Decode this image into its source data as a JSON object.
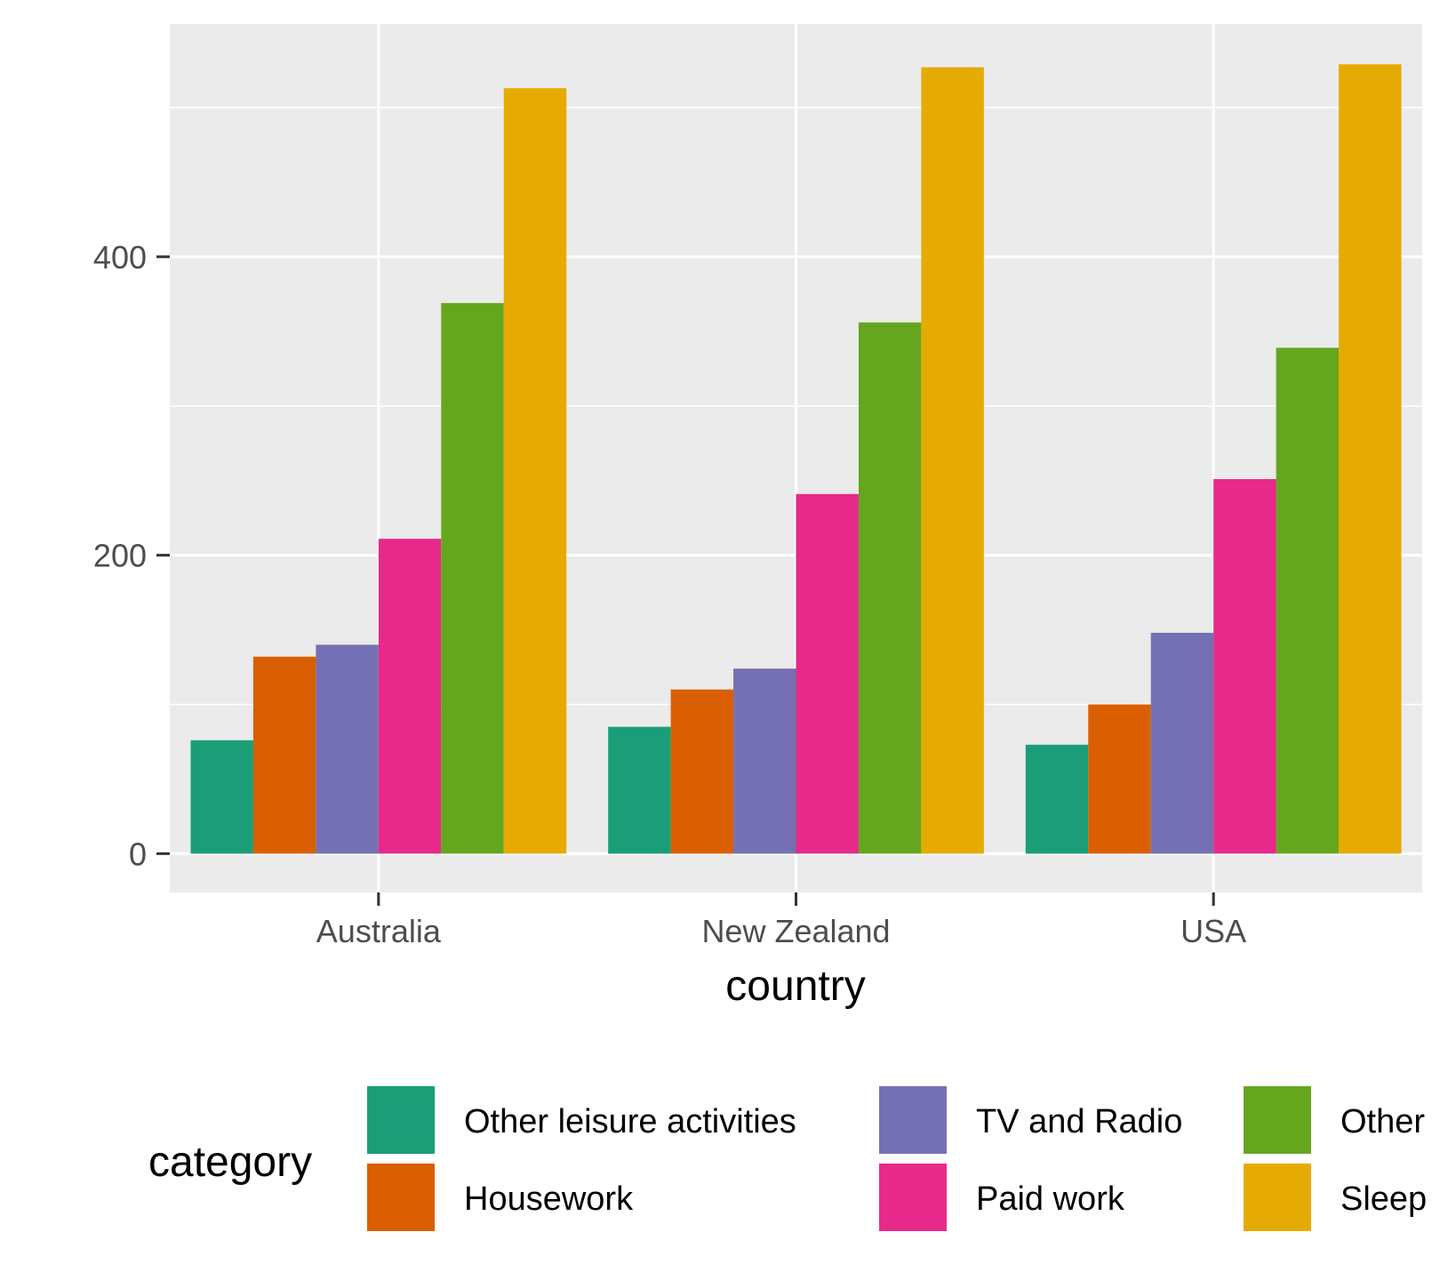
{
  "chart_data": {
    "type": "bar",
    "title": "",
    "xlabel": "country",
    "ylabel": "",
    "categories": [
      "Australia",
      "New Zealand",
      "USA"
    ],
    "ylim": [
      -26,
      556
    ],
    "yticks": [
      0,
      200,
      400
    ],
    "grid": true,
    "legend_title": "category",
    "legend_position": "bottom",
    "series": [
      {
        "name": "Other leisure activities",
        "color": "#1B9E77",
        "values": [
          76,
          85,
          73
        ]
      },
      {
        "name": "Housework",
        "color": "#D95F02",
        "values": [
          132,
          110,
          100
        ]
      },
      {
        "name": "TV and Radio",
        "color": "#7570B3",
        "values": [
          140,
          124,
          148
        ]
      },
      {
        "name": "Paid work",
        "color": "#E7298A",
        "values": [
          211,
          241,
          251
        ]
      },
      {
        "name": "Other",
        "color": "#66A61E",
        "values": [
          369,
          356,
          339
        ]
      },
      {
        "name": "Sleep",
        "color": "#E6AB02",
        "values": [
          513,
          527,
          529
        ]
      }
    ]
  }
}
